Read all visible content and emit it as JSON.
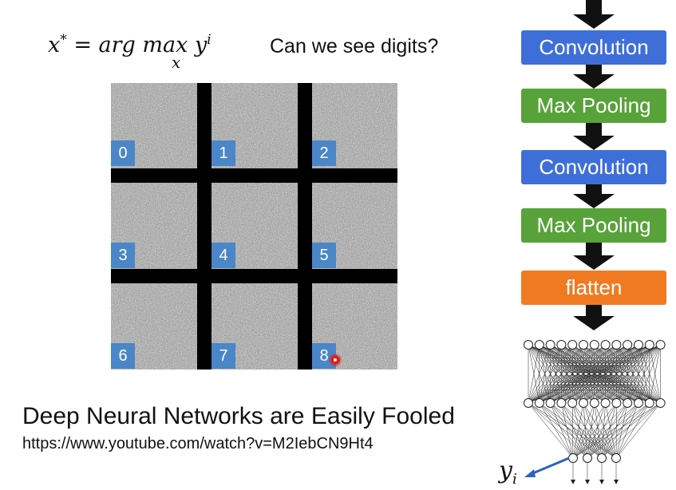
{
  "formula": {
    "lhs": "x",
    "lhs_sup": "*",
    "equals": "=",
    "op": "arg max",
    "op_sub": "x",
    "var": "y",
    "var_sup": "i"
  },
  "question": "Can we see digits?",
  "grid": {
    "digits": [
      "0",
      "1",
      "2",
      "3",
      "4",
      "5",
      "6",
      "7",
      "8"
    ]
  },
  "headline": "Deep Neural Networks are Easily Fooled",
  "url": "https://www.youtube.com/watch?v=M2IebCN9Ht4",
  "pipeline": {
    "blocks": [
      {
        "label": "Convolution",
        "kind": "conv"
      },
      {
        "label": "Max Pooling",
        "kind": "pool"
      },
      {
        "label": "Convolution",
        "kind": "conv"
      },
      {
        "label": "Max Pooling",
        "kind": "pool"
      },
      {
        "label": "flatten",
        "kind": "flat"
      }
    ],
    "colors": {
      "conv": "#3e6fd8",
      "pool": "#58a23a",
      "flatten": "#f07a22"
    }
  },
  "output": {
    "label": "y",
    "sub": "i"
  }
}
